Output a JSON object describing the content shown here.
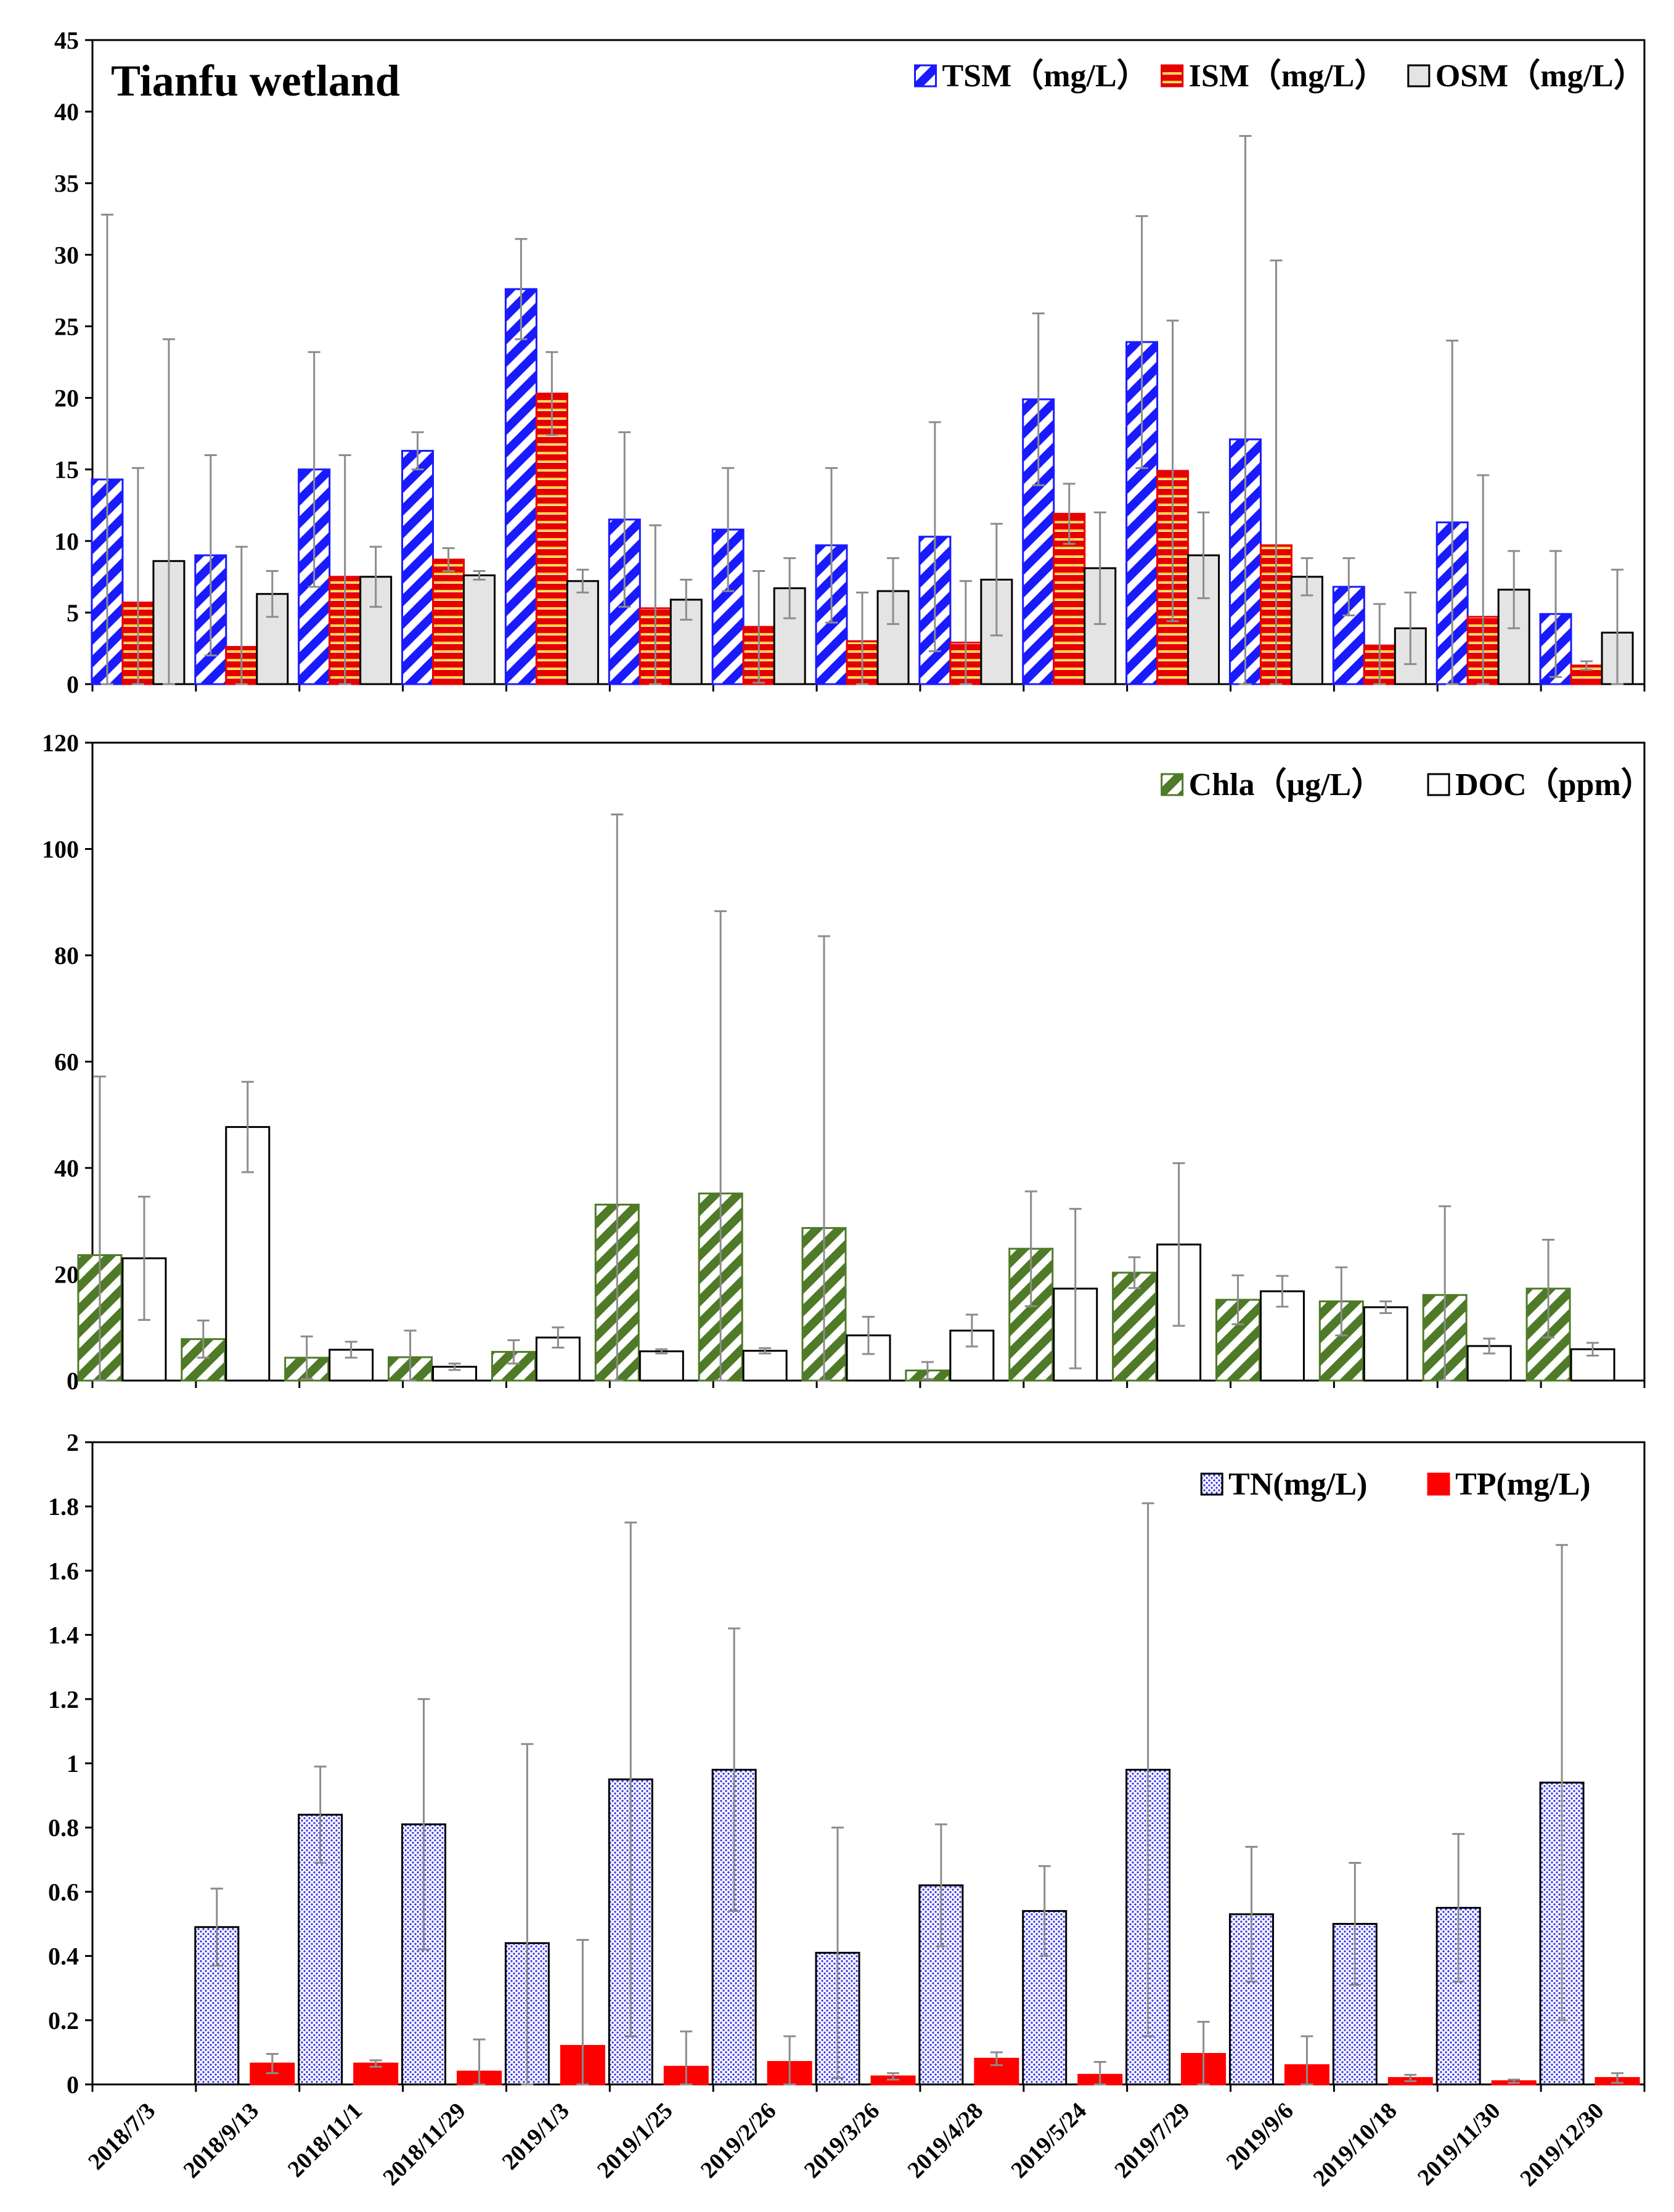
{
  "chart_data": [
    {
      "type": "bar",
      "title": "Tianfu wetland",
      "categories": [
        "2018/7/3",
        "2018/9/13",
        "2018/11/1",
        "2018/11/29",
        "2019/1/3",
        "2019/1/25",
        "2019/2/26",
        "2019/3/26",
        "2019/4/28",
        "2019/5/24",
        "2019/7/29",
        "2019/9/6",
        "2019/10/18",
        "2019/11/30",
        "2019/12/30"
      ],
      "ylim": [
        0,
        45
      ],
      "yticks": [
        0,
        5,
        10,
        15,
        20,
        25,
        30,
        35,
        40,
        45
      ],
      "yticklabels": [
        "0",
        "5",
        "10",
        "15",
        "20",
        "25",
        "30",
        "35",
        "40",
        "45"
      ],
      "legend_position": "top-right",
      "series": [
        {
          "name": "TSM（mg/L）",
          "pattern": "diag",
          "color": "#1a1aff",
          "values": [
            14.3,
            9.0,
            15.0,
            16.3,
            27.6,
            11.5,
            10.8,
            9.7,
            10.3,
            19.9,
            23.9,
            17.1,
            6.8,
            11.3,
            4.9
          ],
          "errors": [
            18.5,
            7.0,
            8.2,
            1.3,
            3.5,
            6.1,
            4.3,
            5.4,
            8.0,
            6.0,
            8.8,
            21.2,
            2.0,
            12.7,
            4.4
          ]
        },
        {
          "name": "ISM（mg/L）",
          "pattern": "hlines",
          "color": "#e60000",
          "values": [
            5.7,
            2.6,
            7.5,
            8.7,
            20.3,
            5.3,
            4.0,
            3.0,
            2.9,
            11.9,
            14.9,
            9.7,
            2.7,
            4.7,
            1.3
          ],
          "errors": [
            9.4,
            7.0,
            8.5,
            0.8,
            2.9,
            5.8,
            3.9,
            3.4,
            4.3,
            2.1,
            10.5,
            19.9,
            2.9,
            9.9,
            0.3
          ]
        },
        {
          "name": "OSM（mg/L）",
          "pattern": "solid",
          "color": "#e4e4e4",
          "values": [
            8.6,
            6.3,
            7.5,
            7.6,
            7.2,
            5.9,
            6.7,
            6.5,
            7.3,
            8.1,
            9.0,
            7.5,
            3.9,
            6.6,
            3.6
          ],
          "errors": [
            15.5,
            1.6,
            2.1,
            0.3,
            0.8,
            1.4,
            2.1,
            2.3,
            3.9,
            3.9,
            3.0,
            1.3,
            2.5,
            2.7,
            4.4
          ]
        }
      ]
    },
    {
      "type": "bar",
      "categories": [
        "2018/7/3",
        "2018/9/13",
        "2018/11/1",
        "2018/11/29",
        "2019/1/3",
        "2019/1/25",
        "2019/2/26",
        "2019/3/26",
        "2019/4/28",
        "2019/5/24",
        "2019/7/29",
        "2019/9/6",
        "2019/10/18",
        "2019/11/30",
        "2019/12/30"
      ],
      "ylim": [
        0,
        120
      ],
      "yticks": [
        0,
        20,
        40,
        60,
        80,
        100,
        120
      ],
      "yticklabels": [
        "0",
        "20",
        "40",
        "60",
        "80",
        "100",
        "120"
      ],
      "legend_position": "top-right",
      "series": [
        {
          "name": "Chla（μg/L）",
          "pattern": "diag",
          "color": "#4f7a28",
          "values": [
            23.6,
            7.8,
            4.3,
            4.4,
            5.4,
            33.1,
            35.2,
            28.7,
            1.9,
            24.8,
            20.3,
            15.2,
            14.9,
            16.1,
            17.3
          ],
          "errors": [
            33.6,
            3.5,
            4.0,
            5.0,
            2.2,
            73.4,
            53.1,
            54.9,
            1.6,
            10.8,
            2.9,
            4.6,
            6.4,
            16.7,
            9.2
          ]
        },
        {
          "name": "DOC（ppm）",
          "pattern": "solid",
          "color": "#ffffff",
          "values": [
            23.0,
            47.7,
            5.8,
            2.6,
            8.1,
            5.5,
            5.6,
            8.5,
            9.4,
            17.3,
            25.6,
            16.8,
            13.8,
            6.5,
            5.9
          ],
          "errors": [
            11.6,
            8.5,
            1.5,
            0.6,
            1.9,
            0.4,
            0.5,
            3.5,
            3.0,
            15.0,
            15.3,
            2.9,
            1.1,
            1.4,
            1.2
          ]
        }
      ]
    },
    {
      "type": "bar",
      "categories": [
        "2018/7/3",
        "2018/9/13",
        "2018/11/1",
        "2018/11/29",
        "2019/1/3",
        "2019/1/25",
        "2019/2/26",
        "2019/3/26",
        "2019/4/28",
        "2019/5/24",
        "2019/7/29",
        "2019/9/6",
        "2019/10/18",
        "2019/11/30",
        "2019/12/30"
      ],
      "xlabels_visible": true,
      "ylim": [
        0,
        2
      ],
      "yticks": [
        0,
        0.2,
        0.4,
        0.6,
        0.8,
        1,
        1.2,
        1.4,
        1.6,
        1.8,
        2
      ],
      "yticklabels": [
        "0",
        "0.2",
        "0.4",
        "0.6",
        "0.8",
        "1",
        "1.2",
        "1.4",
        "1.6",
        "1.8",
        "2"
      ],
      "legend_position": "top-right",
      "series": [
        {
          "name": "TN(mg/L)",
          "pattern": "dots",
          "color": "#3030e0",
          "values": [
            null,
            0.49,
            0.84,
            0.81,
            0.44,
            0.95,
            0.98,
            0.41,
            0.62,
            0.54,
            0.98,
            0.53,
            0.5,
            0.55,
            0.94
          ],
          "errors": [
            null,
            0.12,
            0.15,
            0.39,
            0.62,
            0.8,
            0.44,
            0.39,
            0.19,
            0.14,
            0.83,
            0.21,
            0.19,
            0.23,
            0.74
          ]
        },
        {
          "name": "TP(mg/L)",
          "pattern": "solid",
          "color": "#ff0000",
          "values": [
            null,
            0.065,
            0.065,
            0.04,
            0.12,
            0.055,
            0.07,
            0.025,
            0.08,
            0.03,
            0.095,
            0.06,
            0.02,
            0.01,
            0.02
          ],
          "errors": [
            null,
            0.03,
            0.01,
            0.1,
            0.33,
            0.11,
            0.08,
            0.01,
            0.02,
            0.04,
            0.1,
            0.09,
            0.01,
            0.005,
            0.015
          ]
        }
      ]
    }
  ]
}
